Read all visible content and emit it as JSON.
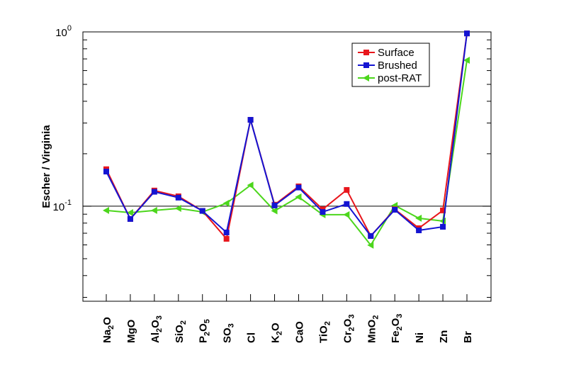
{
  "chart_data": {
    "type": "line",
    "ylabel": "Escher / Virginia",
    "log_y": true,
    "ylim": [
      0.0285,
      1
    ],
    "yticks": [
      {
        "value": 1,
        "label": "10",
        "exponent": "0"
      },
      {
        "value": 0.1,
        "label": "10",
        "exponent": "-1"
      }
    ],
    "yminor": [
      0.03,
      0.04,
      0.05,
      0.06,
      0.07,
      0.08,
      0.09,
      0.2,
      0.3,
      0.4,
      0.5,
      0.6,
      0.7,
      0.8,
      0.9
    ],
    "ref_line": 0.1,
    "legend": "upper right",
    "categories": [
      "Na2O",
      "MgO",
      "Al2O3",
      "SiO2",
      "P2O5",
      "SO3",
      "Cl",
      "K2O",
      "CaO",
      "TiO2",
      "Cr2O3",
      "MnO2",
      "Fe2O3",
      "Ni",
      "Zn",
      "Br"
    ],
    "series": [
      {
        "name": "Surface",
        "color": "#e8161c",
        "marker": "square",
        "values": [
          0.163,
          0.0845,
          0.123,
          0.114,
          0.094,
          0.065,
          0.313,
          0.102,
          0.13,
          0.096,
          0.124,
          0.0675,
          0.096,
          0.0748,
          0.0946,
          0.98
        ]
      },
      {
        "name": "Brushed",
        "color": "#1414d2",
        "marker": "square",
        "values": [
          0.158,
          0.0845,
          0.121,
          0.112,
          0.094,
          0.0707,
          0.313,
          0.101,
          0.128,
          0.0927,
          0.103,
          0.0675,
          0.0954,
          0.0727,
          0.0762,
          0.98
        ]
      },
      {
        "name": "post-RAT",
        "color": "#4cd61c",
        "marker": "triangle-left",
        "values": [
          0.0946,
          0.0919,
          0.0946,
          0.0972,
          0.0927,
          0.104,
          0.132,
          0.094,
          0.113,
          0.0894,
          0.0894,
          0.0598,
          0.101,
          0.0853,
          0.0822,
          0.688
        ]
      }
    ]
  }
}
